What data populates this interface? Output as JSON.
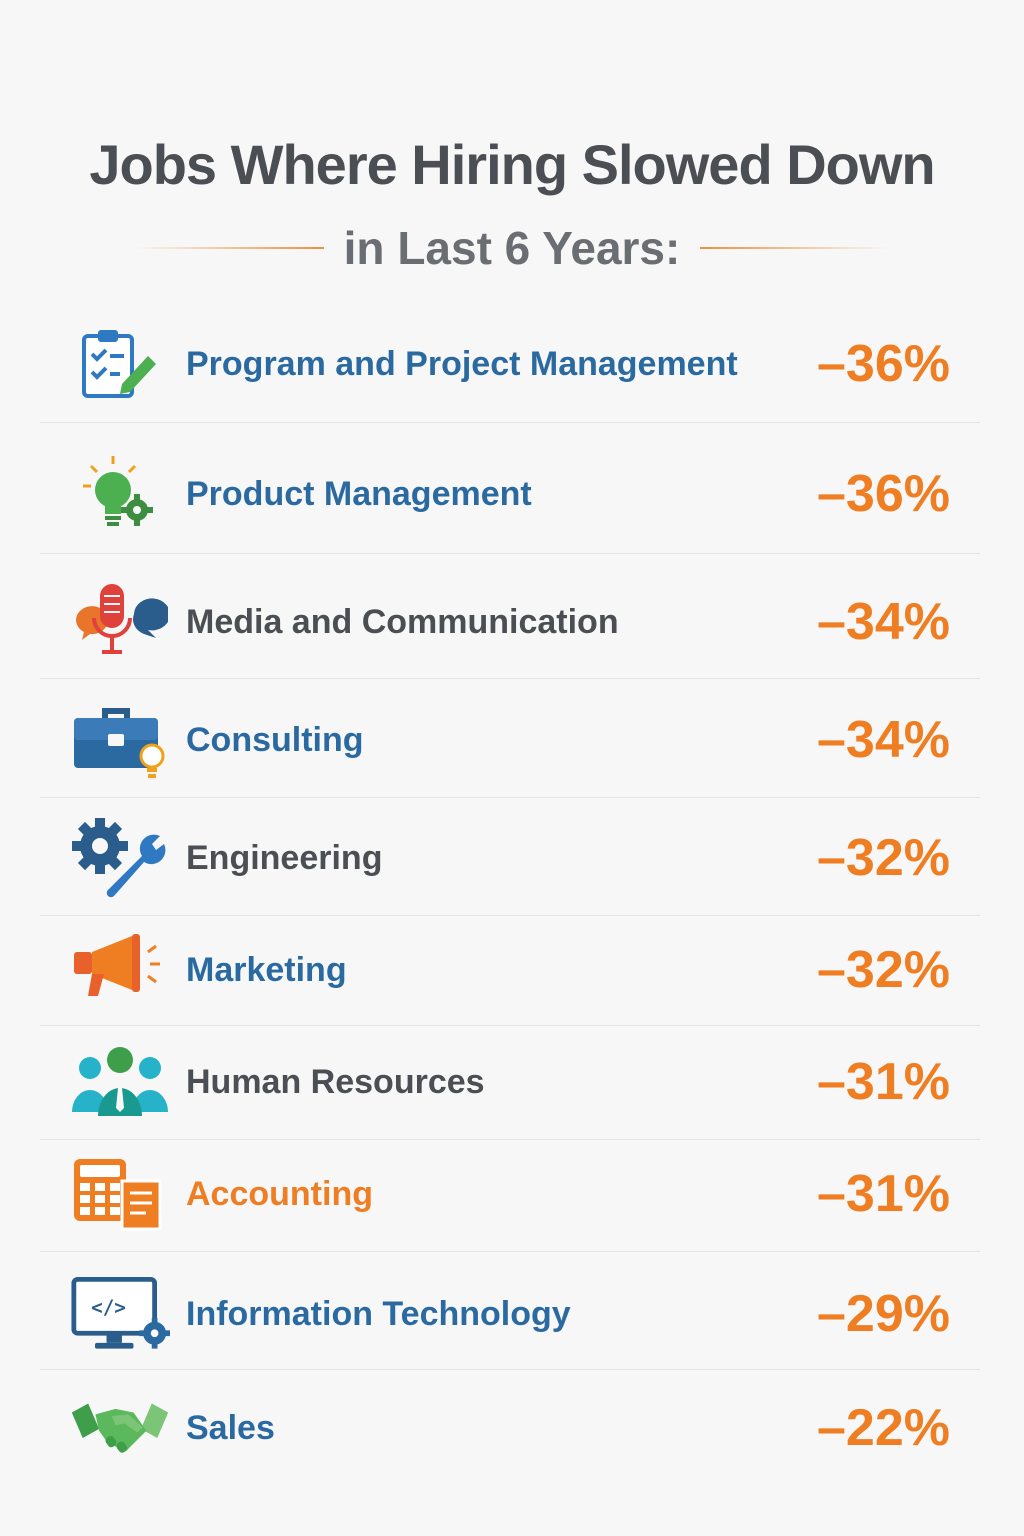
{
  "header": {
    "title": "Jobs Where Hiring Slowed Down",
    "subtitle": "in Last 6 Years:",
    "accent_color": "#e8913f"
  },
  "jobs": [
    {
      "label": "Program and Project Management",
      "value": "–36%",
      "icon": "clipboard-checklist-icon",
      "label_color": "#2b6aa0"
    },
    {
      "label": "Product Management",
      "value": "–36%",
      "icon": "lightbulb-gear-icon",
      "label_color": "#2b6aa0"
    },
    {
      "label": "Media and Communication",
      "value": "–34%",
      "icon": "microphone-speech-icon",
      "label_color": "#4b4f54"
    },
    {
      "label": "Consulting",
      "value": "–34%",
      "icon": "briefcase-lightbulb-icon",
      "label_color": "#2b6aa0"
    },
    {
      "label": "Engineering",
      "value": "–32%",
      "icon": "gear-wrench-icon",
      "label_color": "#4b4f54"
    },
    {
      "label": "Marketing",
      "value": "–32%",
      "icon": "megaphone-icon",
      "label_color": "#2b6aa0"
    },
    {
      "label": "Human Resources",
      "value": "–31%",
      "icon": "people-group-icon",
      "label_color": "#4b4f54"
    },
    {
      "label": "Accounting",
      "value": "–31%",
      "icon": "calculator-document-icon",
      "label_color": "#ef7d22"
    },
    {
      "label": "Information Technology",
      "value": "–29%",
      "icon": "monitor-code-icon",
      "label_color": "#2b6aa0"
    },
    {
      "label": "Sales",
      "value": "–22%",
      "icon": "handshake-icon",
      "label_color": "#2b6aa0"
    }
  ],
  "value_color": "#ef7d22"
}
